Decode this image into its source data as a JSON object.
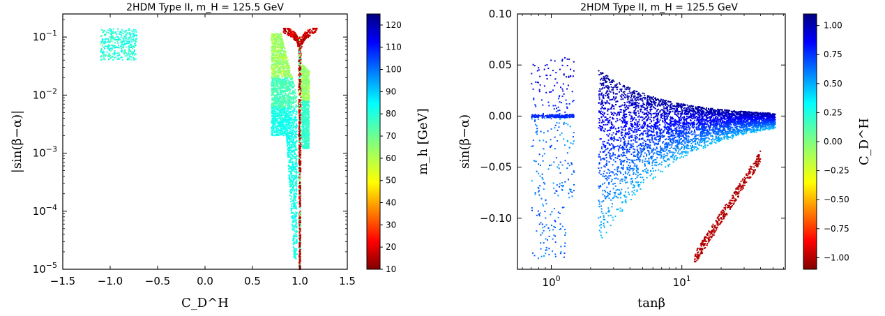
{
  "chart_data": [
    {
      "type": "scatter",
      "title": "2HDM Type II, m_H = 125.5 GeV",
      "xlabel": "C_D^H",
      "ylabel": "|sin(β−α)|",
      "xlim": [
        -1.5,
        1.5
      ],
      "ylim": [
        1e-05,
        0.25
      ],
      "yscale": "log",
      "grid": false,
      "x_ticks": [
        "−1.5",
        "−1.0",
        "−0.5",
        "0.0",
        "0.5",
        "1.0",
        "1.5"
      ],
      "y_ticks": [
        "10^-5",
        "10^-4",
        "10^-3",
        "10^-2",
        "10^-1"
      ],
      "colorbar": {
        "label": "m_h [GeV]",
        "range": [
          10,
          125
        ],
        "ticks": [
          "10",
          "20",
          "30",
          "40",
          "50",
          "60",
          "70",
          "80",
          "90",
          "100",
          "110",
          "120"
        ]
      },
      "regions": [
        {
          "name": "cluster-left",
          "x": [
            -1.1,
            -0.72
          ],
          "y": [
            0.04,
            0.14
          ],
          "color_value": 80
        },
        {
          "name": "left-branch",
          "x": [
            0.7,
            0.95
          ],
          "y": [
            0.002,
            0.12
          ],
          "color_value": 72
        },
        {
          "name": "right-branch",
          "x": [
            1.03,
            1.1
          ],
          "y": [
            0.001,
            0.035
          ],
          "color_value": 75
        },
        {
          "name": "central-spike",
          "x": [
            0.98,
            1.02
          ],
          "y": [
            1e-05,
            0.1
          ],
          "color_value": 15
        }
      ]
    },
    {
      "type": "scatter",
      "title": "2HDM Type II, m_H = 125.5 GeV",
      "xlabel": "tanβ",
      "ylabel": "sin(β−α)",
      "xlim": [
        0.55,
        62
      ],
      "ylim": [
        -0.15,
        0.1
      ],
      "xscale": "log",
      "grid": false,
      "x_ticks": [
        "10^0",
        "10^1"
      ],
      "y_ticks": [
        "−0.10",
        "−0.05",
        "0.00",
        "0.05",
        "0.10"
      ],
      "colorbar": {
        "label": "C_D^H",
        "range": [
          -1.1,
          1.1
        ],
        "ticks": [
          "1.00",
          "0.75",
          "0.50",
          "0.25",
          "0.00",
          "−0.25",
          "−0.50",
          "−0.75",
          "−1.00"
        ]
      },
      "regions": [
        {
          "name": "low-tanb-band",
          "x": [
            0.7,
            1.5
          ],
          "y": [
            -0.14,
            0.058
          ],
          "color_value": 0.6
        },
        {
          "name": "main-fan",
          "x": [
            2.3,
            52
          ],
          "y": [
            -0.11,
            0.038
          ],
          "color_value": 0.7
        },
        {
          "name": "negative-branch",
          "x": [
            12.5,
            40
          ],
          "y": [
            -0.14,
            -0.04
          ],
          "color_value": -1.0
        }
      ]
    }
  ]
}
